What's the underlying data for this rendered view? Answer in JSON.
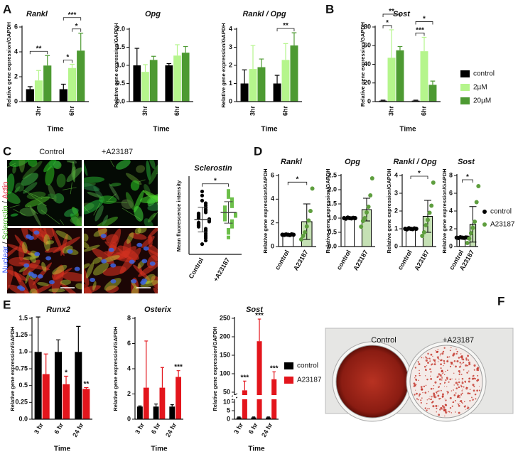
{
  "panel_letters": [
    "A",
    "B",
    "C",
    "D",
    "E",
    "F"
  ],
  "images": {
    "C": {
      "labels": [
        "Control",
        "+A23187"
      ],
      "stains": [
        "Nuclear",
        "/",
        "Sclerostin",
        "/",
        "Actin"
      ]
    },
    "F": {
      "labels": [
        "Control",
        "+A23187"
      ]
    }
  },
  "chart_data": [
    {
      "type": "bar",
      "title": "Rankl",
      "ylabel": "Relative gene expression/GAPDH",
      "xlabel": "Time",
      "categories": [
        "3hr",
        "6hr"
      ],
      "series": [
        {
          "color": "#000000",
          "values": [
            1.0,
            1.0
          ],
          "errors": [
            0.2,
            0.4
          ]
        },
        {
          "color": "#b5f58c",
          "values": [
            1.7,
            2.7
          ],
          "errors": [
            0.8,
            0.3
          ]
        },
        {
          "color": "#4d9a32",
          "values": [
            2.9,
            4.1
          ],
          "errors": [
            0.8,
            1.4
          ]
        }
      ],
      "ylim": [
        0,
        6
      ],
      "yticks": [
        0,
        2,
        4,
        6
      ],
      "significance": [
        {
          "label": "**",
          "category": 0,
          "series": [
            0,
            2
          ]
        },
        {
          "label": "*",
          "category": 1,
          "series": [
            0,
            1
          ]
        },
        {
          "label": "*",
          "category": 1,
          "series": [
            1,
            2
          ]
        },
        {
          "label": "***",
          "category": 1,
          "series": [
            0,
            2
          ]
        }
      ]
    },
    {
      "type": "bar",
      "title": "Opg",
      "ylabel": "Relative gene expression/GAPDH",
      "xlabel": "Time",
      "categories": [
        "3hr",
        "6hr"
      ],
      "series": [
        {
          "color": "#000000",
          "values": [
            1.0,
            1.0
          ],
          "errors": [
            0.47,
            0.05
          ]
        },
        {
          "color": "#b5f58c",
          "values": [
            0.82,
            1.27
          ],
          "errors": [
            0.2,
            0.3
          ]
        },
        {
          "color": "#4d9a32",
          "values": [
            1.15,
            1.35
          ],
          "errors": [
            0.1,
            0.17
          ]
        }
      ],
      "ylim": [
        0,
        2
      ],
      "yticks": [
        {
          "value": 0,
          "label": "0.0"
        },
        0.5,
        {
          "value": 1,
          "label": "1.0"
        },
        1.5,
        {
          "value": 2,
          "label": "2.0"
        }
      ]
    },
    {
      "type": "bar",
      "title": "Rankl / Opg",
      "ylabel": "Relative gene expression/GAPDH",
      "xlabel": "Time",
      "categories": [
        "3hr",
        "6hr"
      ],
      "series": [
        {
          "color": "#000000",
          "values": [
            1.0,
            1.0
          ],
          "errors": [
            0.75,
            0.45
          ]
        },
        {
          "color": "#b5f58c",
          "values": [
            1.8,
            2.3
          ],
          "errors": [
            1.3,
            0.9
          ]
        },
        {
          "color": "#4d9a32",
          "values": [
            1.9,
            3.1
          ],
          "errors": [
            0.45,
            0.7
          ]
        }
      ],
      "ylim": [
        0,
        4
      ],
      "yticks": [
        0,
        1,
        2,
        3,
        4
      ],
      "significance": [
        {
          "label": "**",
          "category": 1,
          "series": [
            0,
            2
          ]
        }
      ]
    },
    {
      "type": "bar",
      "title": "Sost",
      "ylabel": "Relative gene expression/GAPDH",
      "xlabel": "Time",
      "categories": [
        "3hr",
        "6hr"
      ],
      "series": [
        {
          "name": "control",
          "color": "#000000",
          "values": [
            1,
            1
          ],
          "errors": [
            0.5,
            0.5
          ]
        },
        {
          "name": "2µM",
          "color": "#b5f58c",
          "values": [
            47,
            54
          ],
          "errors": [
            30,
            15
          ]
        },
        {
          "name": "20µM",
          "color": "#4d9a32",
          "values": [
            55,
            18
          ],
          "errors": [
            4,
            4
          ]
        }
      ],
      "ylim": [
        0,
        80
      ],
      "yticks": [
        0,
        20,
        40,
        60,
        80
      ],
      "legend": true,
      "significance": [
        {
          "label": "*",
          "category": 0,
          "series": [
            0,
            1
          ]
        },
        {
          "label": "**",
          "category": 0,
          "series": [
            0,
            2
          ]
        },
        {
          "label": "***",
          "category": 1,
          "series": [
            0,
            1
          ]
        },
        {
          "label": "*",
          "category": 1,
          "series": [
            0,
            2
          ]
        }
      ]
    },
    {
      "type": "dot_plot",
      "title": "Sclerostin",
      "ylabel": "Mean fluorescence intensity",
      "categories": [
        "Control",
        "+A23187"
      ],
      "colors": [
        "#000000",
        "#6cbf4a"
      ],
      "markers": [
        "circle",
        "square"
      ],
      "ylim": [
        0,
        1500
      ],
      "values": [
        [
          1230,
          1150,
          1050,
          1000,
          960,
          920,
          880,
          850,
          820,
          800,
          780,
          760,
          740,
          720,
          700,
          690,
          680,
          660,
          640,
          620,
          600,
          580,
          560,
          540,
          500,
          470,
          440,
          400,
          360,
          320,
          270,
          200
        ],
        [
          1240,
          1180,
          1120,
          1080,
          1040,
          1000,
          970,
          940,
          920,
          900,
          880,
          860,
          840,
          820,
          800,
          790,
          770,
          750,
          730,
          710,
          680,
          650,
          620,
          580,
          540,
          480,
          420,
          330
        ]
      ],
      "means": [
        680,
        820
      ],
      "sds": [
        240,
        210
      ],
      "significance": [
        {
          "label": "*",
          "categories": [
            0,
            1
          ]
        }
      ]
    },
    {
      "type": "bar",
      "title": "Rankl",
      "ylabel": "Relative gene expression/GAPDH",
      "categories": [
        "control",
        "A23187"
      ],
      "bar_colors": [
        "#ffffff",
        "#c5e0b4"
      ],
      "point_colors": [
        "#000000",
        "#5e9e3e"
      ],
      "values": [
        1.0,
        2.1
      ],
      "errors": [
        0.05,
        1.5
      ],
      "points": [
        [
          1.0,
          0.98,
          1.02,
          1.0,
          0.97,
          1.03,
          1.0
        ],
        [
          0.6,
          0.9,
          1.2,
          1.7,
          2.2,
          3.0,
          4.9
        ]
      ],
      "ylim": [
        0,
        6
      ],
      "yticks": [
        0,
        2,
        4,
        6
      ],
      "significance": [
        {
          "label": "*",
          "categories": [
            0,
            1
          ]
        }
      ]
    },
    {
      "type": "bar",
      "title": "Opg",
      "ylabel": "Relative gene expression/GAPDH",
      "categories": [
        "control",
        "A23187"
      ],
      "bar_colors": [
        "#ffffff",
        "#c5e0b4"
      ],
      "point_colors": [
        "#000000",
        "#5e9e3e"
      ],
      "values": [
        1.0,
        1.3
      ],
      "errors": [
        0.03,
        0.4
      ],
      "points": [
        [
          1.0,
          0.98,
          1.02,
          1.0,
          0.99,
          1.01,
          1.0
        ],
        [
          0.7,
          0.9,
          1.0,
          1.2,
          1.4,
          1.8,
          2.4
        ]
      ],
      "ylim": [
        0,
        2.5
      ],
      "yticks": [
        {
          "value": 0,
          "label": "0.0"
        },
        0.5,
        {
          "value": 1,
          "label": "1.0"
        },
        1.5,
        {
          "value": 2,
          "label": "2.0"
        },
        2.5
      ]
    },
    {
      "type": "bar",
      "title": "Rankl / Opg",
      "ylabel": "Relative gene expression/GAPDH",
      "categories": [
        "control",
        "A23187"
      ],
      "bar_colors": [
        "#ffffff",
        "#c5e0b4"
      ],
      "point_colors": [
        "#000000",
        "#5e9e3e"
      ],
      "values": [
        1.0,
        1.7
      ],
      "errors": [
        0.05,
        0.9
      ],
      "points": [
        [
          1.0,
          0.97,
          1.03,
          1.0,
          0.98,
          1.02,
          1.0
        ],
        [
          0.6,
          0.8,
          1.2,
          1.5,
          1.9,
          2.3,
          3.6
        ]
      ],
      "ylim": [
        0,
        4
      ],
      "yticks": [
        0,
        1,
        2,
        3,
        4
      ],
      "significance": [
        {
          "label": "*",
          "categories": [
            0,
            1
          ]
        }
      ]
    },
    {
      "type": "bar",
      "title": "Sost",
      "ylabel": "Relative gene expression/GAPDH",
      "categories": [
        "control",
        "A23187"
      ],
      "bar_colors": [
        "#ffffff",
        "#c5e0b4"
      ],
      "point_colors": [
        "#000000",
        "#5e9e3e"
      ],
      "values": [
        1.0,
        2.5
      ],
      "errors": [
        0.05,
        2.0
      ],
      "points": [
        [
          1.0,
          0.96,
          1.04,
          1.0,
          0.98,
          1.02,
          1.0
        ],
        [
          0.4,
          0.9,
          1.5,
          2.1,
          2.8,
          5.0,
          6.8
        ]
      ],
      "ylim": [
        0,
        8
      ],
      "yticks": [
        0,
        2,
        4,
        6,
        8
      ],
      "legend": true,
      "significance": [
        {
          "label": "*",
          "categories": [
            0,
            1
          ]
        }
      ]
    },
    {
      "type": "bar",
      "title": "Runx2",
      "ylabel": "Relative gene expression/GAPDH",
      "xlabel": "Time",
      "categories": [
        "3 hr",
        "6 hr",
        "24 hr"
      ],
      "series": [
        {
          "color": "#000000",
          "values": [
            1.0,
            1.0,
            1.0
          ],
          "errors": [
            0.52,
            0.18,
            0.38
          ]
        },
        {
          "color": "#e3151c",
          "values": [
            0.67,
            0.52,
            0.45
          ],
          "errors": [
            0.3,
            0.12,
            0.02
          ]
        }
      ],
      "ylim": [
        0,
        1.5
      ],
      "yticks": [
        {
          "value": 0,
          "label": "0.0"
        },
        0.25,
        0.5,
        0.75,
        {
          "value": 1,
          "label": "1.0"
        },
        1.25,
        1.5
      ],
      "significance": [
        {
          "label": "*",
          "category": 1,
          "series": [
            1
          ]
        },
        {
          "label": "**",
          "category": 2,
          "series": [
            1
          ]
        }
      ]
    },
    {
      "type": "bar",
      "title": "Osterix",
      "ylabel": "Relative gene expression/GAPDH",
      "xlabel": "Time",
      "categories": [
        "3 hr",
        "6 hr",
        "24 hr"
      ],
      "series": [
        {
          "color": "#000000",
          "values": [
            1,
            1,
            1
          ],
          "errors": [
            0.05,
            0.2,
            0.15
          ]
        },
        {
          "color": "#e3151c",
          "values": [
            2.5,
            2.5,
            3.35
          ],
          "errors": [
            3.7,
            1.6,
            0.5
          ]
        }
      ],
      "ylim": [
        0,
        8
      ],
      "yticks": [
        0,
        2,
        4,
        6,
        8
      ],
      "significance": [
        {
          "label": "***",
          "category": 2,
          "series": [
            1
          ]
        }
      ]
    },
    {
      "type": "bar",
      "title": "Sost",
      "ylabel": "Relative gene expression/GAPDH",
      "xlabel": "Time",
      "categories": [
        "3 hr",
        "6 hr",
        "24 hr"
      ],
      "series": [
        {
          "name": "control",
          "color": "#000000",
          "values": [
            1,
            1,
            1
          ],
          "errors": [
            0.3,
            0.3,
            0.3
          ]
        },
        {
          "name": "A23187",
          "color": "#e3151c",
          "values": [
            55,
            188,
            85
          ],
          "errors": [
            25,
            60,
            20
          ]
        }
      ],
      "ylim": [
        0,
        250
      ],
      "ybreak": [
        10,
        50
      ],
      "yticks": [
        0,
        5,
        10,
        50,
        100,
        150,
        200,
        250
      ],
      "legend": true,
      "significance": [
        {
          "label": "***",
          "category": 0,
          "series": [
            1
          ]
        },
        {
          "label": "***",
          "category": 1,
          "series": [
            1
          ]
        },
        {
          "label": "***",
          "category": 2,
          "series": [
            1
          ]
        }
      ]
    }
  ]
}
